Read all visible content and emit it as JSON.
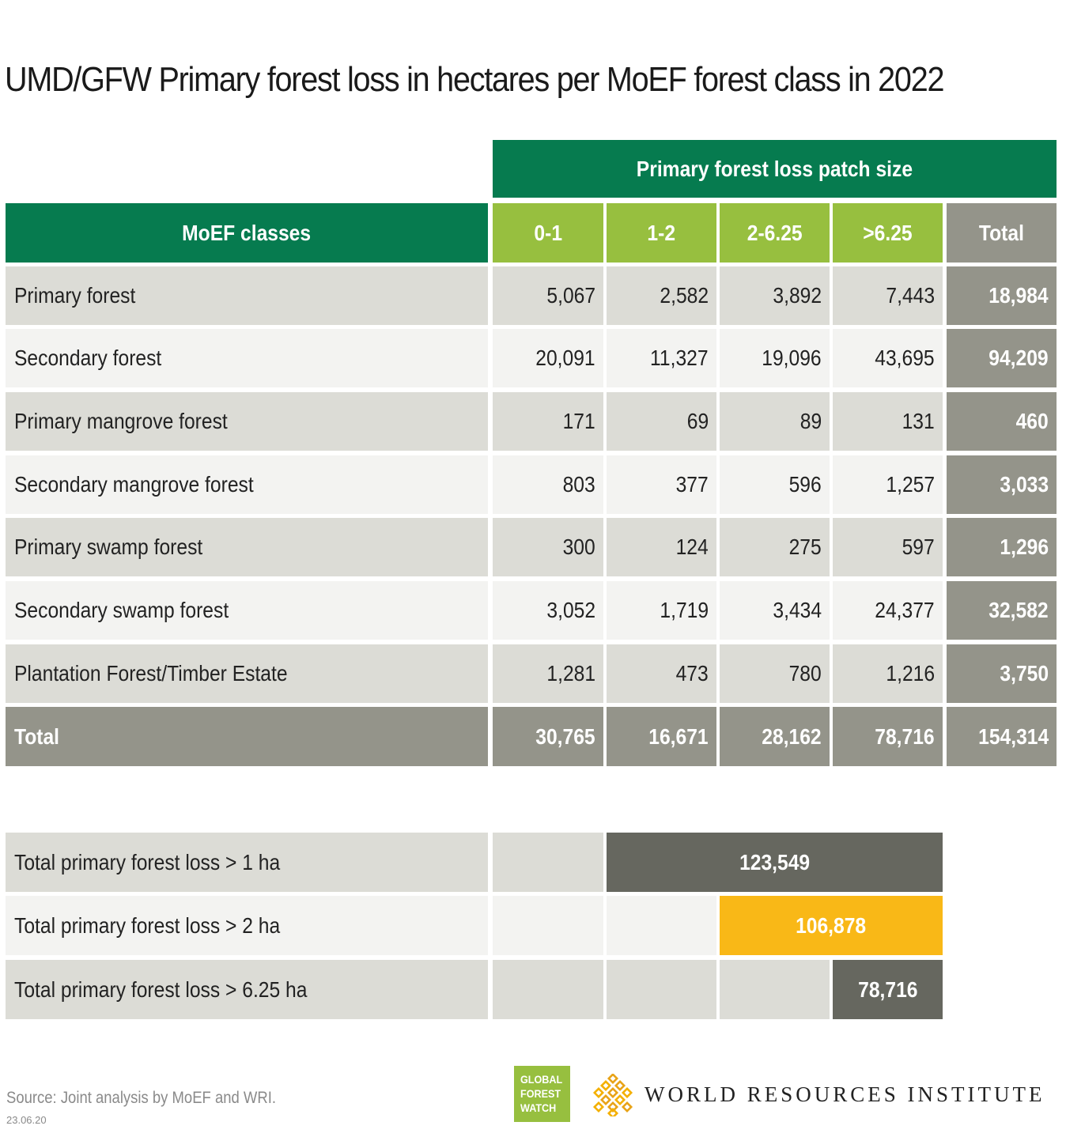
{
  "title": "UMD/GFW Primary forest loss in hectares per MoEF forest class in 2022",
  "table": {
    "group_header": "Primary forest loss patch size",
    "row_header": "MoEF classes",
    "columns": [
      "0-1",
      "1-2",
      "2-6.25",
      ">6.25",
      "Total"
    ],
    "rows": [
      {
        "label": "Primary forest",
        "values": [
          "5,067",
          "2,582",
          "3,892",
          "7,443"
        ],
        "total": "18,984"
      },
      {
        "label": "Secondary forest",
        "values": [
          "20,091",
          "11,327",
          "19,096",
          "43,695"
        ],
        "total": "94,209"
      },
      {
        "label": "Primary mangrove forest",
        "values": [
          "171",
          "69",
          "89",
          "131"
        ],
        "total": "460"
      },
      {
        "label": "Secondary mangrove forest",
        "values": [
          "803",
          "377",
          "596",
          "1,257"
        ],
        "total": "3,033"
      },
      {
        "label": "Primary swamp forest",
        "values": [
          "300",
          "124",
          "275",
          "597"
        ],
        "total": "1,296"
      },
      {
        "label": "Secondary swamp forest",
        "values": [
          "3,052",
          "1,719",
          "3,434",
          "24,377"
        ],
        "total": "32,582"
      },
      {
        "label": "Plantation Forest/Timber Estate",
        "values": [
          "1,281",
          "473",
          "780",
          "1,216"
        ],
        "total": "3,750"
      }
    ],
    "total_row": {
      "label": "Total",
      "values": [
        "30,765",
        "16,671",
        "28,162",
        "78,716"
      ],
      "total": "154,314"
    }
  },
  "summary": [
    {
      "label": "Total primary forest loss > 1 ha",
      "value": "123,549",
      "color": "#66675f"
    },
    {
      "label": "Total primary forest loss > 2 ha",
      "value": "106,878",
      "color": "#f9b817"
    },
    {
      "label": "Total primary forest loss > 6.25 ha",
      "value": "78,716",
      "color": "#66675f"
    }
  ],
  "source": "Source: Joint analysis by MoEF and WRI.",
  "date": "23.06.20",
  "logos": {
    "gfw": [
      "GLOBAL",
      "FOREST",
      "WATCH"
    ],
    "wri": "WORLD RESOURCES INSTITUTE"
  },
  "colors": {
    "header_green": "#067b4f",
    "header_lime": "#97bf3f",
    "total_gray": "#94948a",
    "row_dark": "#dcdcd6",
    "row_light": "#f3f3f1",
    "highlight_yellow": "#f9b817",
    "bar_dark": "#66675f"
  },
  "chart_data": {
    "type": "table",
    "title": "UMD/GFW Primary forest loss in hectares per MoEF forest class in 2022",
    "column_group": "Primary forest loss patch size",
    "row_header": "MoEF classes",
    "columns": [
      "0-1",
      "1-2",
      "2-6.25",
      ">6.25",
      "Total"
    ],
    "rows": [
      {
        "label": "Primary forest",
        "values": [
          5067,
          2582,
          3892,
          7443,
          18984
        ]
      },
      {
        "label": "Secondary forest",
        "values": [
          20091,
          11327,
          19096,
          43695,
          94209
        ]
      },
      {
        "label": "Primary mangrove forest",
        "values": [
          171,
          69,
          89,
          131,
          460
        ]
      },
      {
        "label": "Secondary mangrove forest",
        "values": [
          803,
          377,
          596,
          1257,
          3033
        ]
      },
      {
        "label": "Primary swamp forest",
        "values": [
          300,
          124,
          275,
          597,
          1296
        ]
      },
      {
        "label": "Secondary swamp forest",
        "values": [
          3052,
          1719,
          3434,
          24377,
          32582
        ]
      },
      {
        "label": "Plantation Forest/Timber Estate",
        "values": [
          1281,
          473,
          780,
          1216,
          3750
        ]
      },
      {
        "label": "Total",
        "values": [
          30765,
          16671,
          28162,
          78716,
          154314
        ]
      }
    ],
    "summary": [
      {
        "label": "Total primary forest loss > 1 ha",
        "value": 123549
      },
      {
        "label": "Total primary forest loss > 2 ha",
        "value": 106878
      },
      {
        "label": "Total primary forest loss > 6.25 ha",
        "value": 78716
      }
    ]
  }
}
